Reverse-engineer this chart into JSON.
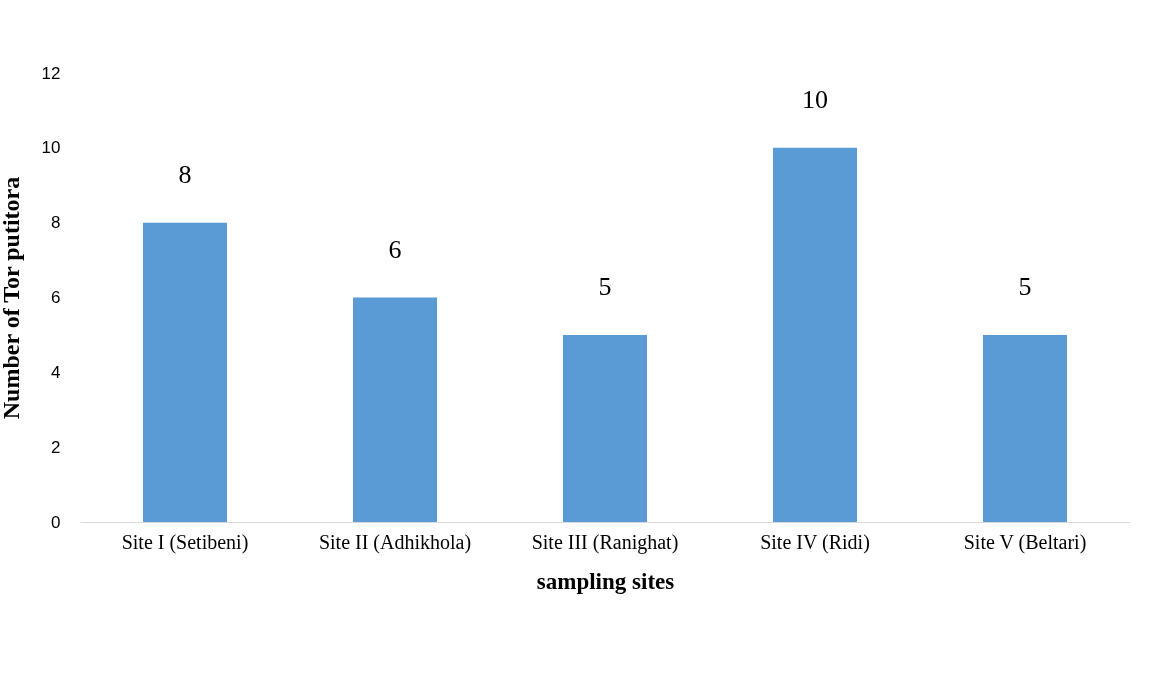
{
  "chart_data": {
    "type": "bar",
    "xlabel": "sampling sites",
    "ylabel": "Number of Tor putitora",
    "categories": [
      "Site I (Setibeni)",
      "Site II (Adhikhola)",
      "Site III (Ranighat)",
      "Site IV (Ridi)",
      "Site V (Beltari)"
    ],
    "values": [
      8,
      6,
      5,
      10,
      5
    ],
    "color": "#5b9bd5",
    "ylim": [
      0,
      12
    ],
    "yticks": [
      0,
      2,
      4,
      6,
      8,
      10,
      12
    ],
    "grid": false,
    "data_labels": true
  }
}
